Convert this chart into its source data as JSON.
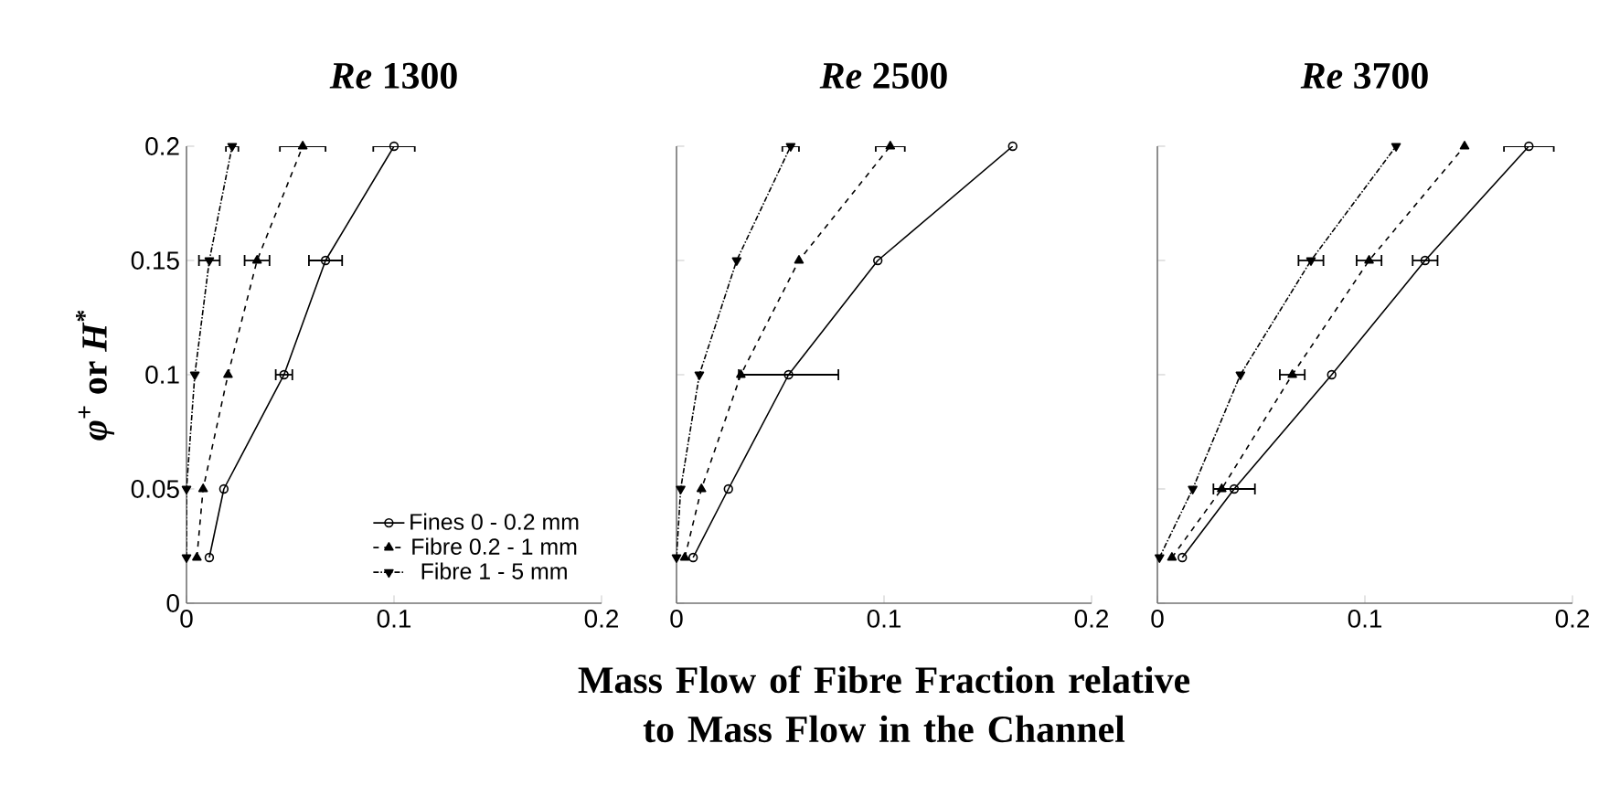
{
  "chart_data": [
    {
      "type": "line",
      "title": "*Re* 1300",
      "ylabel": "*φ*$^{+}$ or *H*$^{*}$",
      "xlim": [
        0,
        0.2
      ],
      "xticks": [
        0,
        0.1,
        0.2
      ],
      "ylim": [
        0,
        0.2
      ],
      "yticks": [
        0,
        0.05,
        0.1,
        0.15,
        0.2
      ],
      "legend": "bottom right",
      "series": [
        {
          "name": "Fines 0 - 0.2 mm",
          "color": "#000000",
          "marker": "circle",
          "line_style": "solid",
          "x": [
            0.011,
            0.018,
            0.047,
            0.067,
            0.1
          ],
          "values": [
            0.02,
            0.05,
            0.1,
            0.15,
            0.2
          ],
          "xerrors": [
            null,
            null,
            0.004,
            0.008,
            0.01
          ]
        },
        {
          "name": "Fibre 0.2 - 1 mm",
          "color": "#000000",
          "marker": "triangle",
          "line_style": "dashed",
          "x": [
            0.005,
            0.008,
            0.02,
            0.034,
            0.056
          ],
          "values": [
            0.02,
            0.05,
            0.1,
            0.15,
            0.2
          ],
          "xerrors": [
            null,
            null,
            null,
            0.006,
            0.011
          ]
        },
        {
          "name": "Fibre 1 - 5 mm",
          "color": "#000000",
          "marker": "triangle-down",
          "line_style": "dotted",
          "x": [
            0,
            0,
            0.004,
            0.011,
            0.022
          ],
          "values": [
            0.02,
            0.05,
            0.1,
            0.15,
            0.2
          ],
          "xerrors": [
            null,
            null,
            null,
            0.005,
            0.003
          ]
        }
      ]
    },
    {
      "type": "line",
      "title": "*Re* 2500",
      "xlabel": "Mass Flow of Fibre Fraction relative to Mass Flow in the Channel",
      "xlim": [
        0,
        0.2
      ],
      "xticks": [
        0,
        0.1,
        0.2
      ],
      "ylim": [
        0,
        0.2
      ],
      "yticks": [
        0,
        0.05,
        0.1,
        0.15,
        0.2
      ],
      "tick_labels": "x",
      "series": [
        {
          "color": "#000000",
          "marker": "circle",
          "line_style": "solid",
          "x": [
            0.008,
            0.025,
            0.054,
            0.097,
            0.162
          ],
          "values": [
            0.02,
            0.05,
            0.1,
            0.15,
            0.2
          ],
          "xerrors": [
            null,
            null,
            0.024,
            null,
            null
          ]
        },
        {
          "color": "#000000",
          "marker": "triangle",
          "line_style": "dashed",
          "x": [
            0.004,
            0.012,
            0.031,
            0.059,
            0.103
          ],
          "values": [
            0.02,
            0.05,
            0.1,
            0.15,
            0.2
          ],
          "xerrors": [
            null,
            null,
            null,
            null,
            0.007
          ]
        },
        {
          "color": "#000000",
          "marker": "triangle-down",
          "line_style": "dotted",
          "x": [
            0,
            0.002,
            0.011,
            0.029,
            0.055
          ],
          "values": [
            0.02,
            0.05,
            0.1,
            0.15,
            0.2
          ],
          "xerrors": [
            null,
            null,
            null,
            null,
            0.004
          ]
        }
      ]
    },
    {
      "type": "line",
      "title": "*Re* 3700",
      "xlim": [
        0,
        0.2
      ],
      "xticks": [
        0,
        0.1,
        0.2
      ],
      "ylim": [
        0,
        0.2
      ],
      "yticks": [
        0,
        0.05,
        0.1,
        0.15,
        0.2
      ],
      "tick_labels": "x",
      "series": [
        {
          "color": "#000000",
          "marker": "circle",
          "line_style": "solid",
          "x": [
            0.012,
            0.037,
            0.084,
            0.129,
            0.179
          ],
          "values": [
            0.02,
            0.05,
            0.1,
            0.15,
            0.2
          ],
          "xerrors": [
            null,
            0.01,
            null,
            0.006,
            0.012
          ]
        },
        {
          "color": "#000000",
          "marker": "triangle",
          "line_style": "dashed",
          "x": [
            0.007,
            0.031,
            0.065,
            0.102,
            0.148
          ],
          "values": [
            0.02,
            0.05,
            0.1,
            0.15,
            0.2
          ],
          "xerrors": [
            null,
            null,
            0.006,
            0.006,
            null
          ]
        },
        {
          "color": "#000000",
          "marker": "triangle-down",
          "line_style": "dotted",
          "x": [
            0.001,
            0.017,
            0.04,
            0.074,
            0.115
          ],
          "values": [
            0.02,
            0.05,
            0.1,
            0.15,
            0.2
          ],
          "xerrors": [
            null,
            null,
            null,
            0.006,
            null
          ]
        }
      ]
    }
  ]
}
